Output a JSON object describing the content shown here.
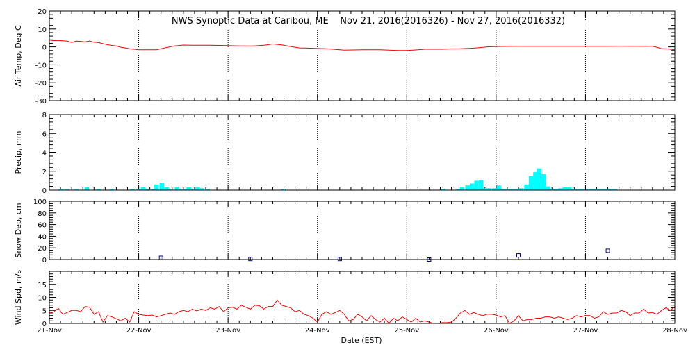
{
  "title": "NWS Synoptic Data at Caribou, ME    Nov 21, 2016(2016326) - Nov 27, 2016(2016332)",
  "x_axis_label": "Date (EST)",
  "x_tick_labels": [
    "21-Nov",
    "22-Nov",
    "23-Nov",
    "24-Nov",
    "25-Nov",
    "26-Nov",
    "27-Nov",
    "28-Nov"
  ],
  "colors": {
    "line": "#ff0000",
    "precip": "#00ffff",
    "snow_marker": "#000080"
  },
  "chart_data": [
    {
      "type": "line",
      "name": "air_temp",
      "ylabel": "Air Temp, Deg C",
      "ylim": [
        -30,
        20
      ],
      "yticks": [
        -30,
        -20,
        -10,
        0,
        10,
        20
      ],
      "x_units": "days after 21-Nov 00:00",
      "x": [
        0.0,
        0.05,
        0.1,
        0.15,
        0.2,
        0.25,
        0.3,
        0.35,
        0.4,
        0.45,
        0.5,
        0.55,
        0.6,
        0.65,
        0.7,
        0.75,
        0.8,
        0.85,
        0.9,
        0.95,
        1.0,
        1.1,
        1.2,
        1.3,
        1.4,
        1.5,
        1.6,
        1.7,
        1.8,
        1.9,
        2.0,
        2.1,
        2.2,
        2.3,
        2.4,
        2.5,
        2.6,
        2.7,
        2.8,
        2.9,
        3.0,
        3.1,
        3.2,
        3.3,
        3.4,
        3.5,
        3.6,
        3.7,
        3.8,
        3.9,
        4.0,
        4.1,
        4.2,
        4.3,
        4.4,
        4.5,
        4.6,
        4.7,
        4.8,
        4.9,
        5.0,
        5.2,
        5.4,
        5.6,
        5.8,
        6.0,
        6.2,
        6.4,
        6.6,
        6.75,
        6.8,
        6.85,
        6.9,
        6.95,
        7.0
      ],
      "y": [
        3.8,
        3.5,
        3.6,
        3.4,
        3.2,
        2.5,
        3.2,
        3.1,
        2.8,
        3.3,
        2.6,
        2.4,
        1.8,
        1.2,
        0.8,
        0.5,
        -0.2,
        -0.6,
        -1.1,
        -1.3,
        -1.6,
        -1.6,
        -1.6,
        -0.5,
        0.5,
        1.0,
        0.9,
        0.9,
        0.9,
        0.8,
        0.7,
        0.6,
        0.5,
        0.6,
        0.9,
        1.6,
        1.1,
        0.2,
        -0.6,
        -0.7,
        -0.9,
        -1.0,
        -1.4,
        -1.8,
        -1.7,
        -1.6,
        -1.6,
        -1.6,
        -1.8,
        -2.0,
        -2.0,
        -1.7,
        -1.3,
        -1.3,
        -1.3,
        -1.1,
        -1.0,
        -0.8,
        -0.5,
        0.0,
        0.2,
        0.3,
        0.3,
        0.3,
        0.3,
        0.3,
        0.3,
        0.4,
        0.3,
        0.3,
        -0.2,
        -1.0,
        -1.0,
        -1.3,
        -1.6
      ]
    },
    {
      "type": "bar",
      "name": "precip",
      "ylabel": "Precip, mm",
      "ylim": [
        0,
        8
      ],
      "yticks": [
        0,
        2,
        4,
        6,
        8
      ],
      "x_units": "days after 21-Nov 00:00",
      "x": [
        0.13,
        0.2,
        0.3,
        0.42,
        0.55,
        0.7,
        0.93,
        1.0,
        1.05,
        1.1,
        1.16,
        1.2,
        1.26,
        1.31,
        1.36,
        1.43,
        1.47,
        1.52,
        1.56,
        1.61,
        1.66,
        1.71,
        1.77,
        2.62,
        4.41,
        4.58,
        4.62,
        4.68,
        4.73,
        4.78,
        4.83,
        4.87,
        4.92,
        4.98,
        5.03,
        5.08,
        5.13,
        5.18,
        5.23,
        5.28,
        5.34,
        5.39,
        5.44,
        5.48,
        5.53,
        5.58,
        5.63,
        5.67,
        5.72,
        5.77,
        5.82,
        5.87,
        5.92,
        5.97,
        6.03,
        6.08,
        6.13,
        6.18,
        6.23,
        6.28,
        6.33
      ],
      "values": [
        0.1,
        0.1,
        0.1,
        0.3,
        0.1,
        0.1,
        0.1,
        0.1,
        0.3,
        0.1,
        0.1,
        0.6,
        0.8,
        0.3,
        0.1,
        0.3,
        0.1,
        0.1,
        0.3,
        0.1,
        0.3,
        0.2,
        0.1,
        0.1,
        0.1,
        0.1,
        0.3,
        0.5,
        0.7,
        1.0,
        1.1,
        0.2,
        0.2,
        0.2,
        0.5,
        0.1,
        0.1,
        0.1,
        0.1,
        0.2,
        0.6,
        1.5,
        1.9,
        2.3,
        1.7,
        0.4,
        0.1,
        0.1,
        0.2,
        0.3,
        0.3,
        0.1,
        0.1,
        0.1,
        0.1,
        0.1,
        0.1,
        0.1,
        0.1,
        0.1,
        0.1
      ]
    },
    {
      "type": "scatter",
      "name": "snow_depth",
      "ylabel": "Snow Dep, cm",
      "ylim": [
        0,
        100
      ],
      "yticks": [
        0,
        20,
        40,
        60,
        80,
        100
      ],
      "x_units": "days after 21-Nov 00:00",
      "x": [
        1.25,
        2.25,
        3.25,
        4.25,
        5.25,
        6.25
      ],
      "y": [
        3,
        1,
        1,
        0,
        7,
        15
      ]
    },
    {
      "type": "line",
      "name": "wind_speed",
      "ylabel": "Wind Spd, m/s",
      "ylim": [
        0,
        20
      ],
      "yticks": [
        0,
        5,
        10,
        15
      ],
      "x_units": "days after 21-Nov 00:00",
      "x": [
        0.0,
        0.05,
        0.1,
        0.15,
        0.2,
        0.25,
        0.3,
        0.35,
        0.4,
        0.45,
        0.5,
        0.55,
        0.6,
        0.65,
        0.7,
        0.75,
        0.8,
        0.85,
        0.9,
        0.95,
        1.0,
        1.05,
        1.1,
        1.15,
        1.2,
        1.25,
        1.3,
        1.35,
        1.4,
        1.45,
        1.5,
        1.55,
        1.6,
        1.65,
        1.7,
        1.75,
        1.8,
        1.85,
        1.9,
        1.95,
        2.0,
        2.05,
        2.1,
        2.15,
        2.2,
        2.25,
        2.3,
        2.35,
        2.4,
        2.45,
        2.5,
        2.55,
        2.6,
        2.65,
        2.7,
        2.75,
        2.8,
        2.85,
        2.9,
        2.95,
        3.0,
        3.05,
        3.1,
        3.15,
        3.2,
        3.25,
        3.3,
        3.35,
        3.4,
        3.45,
        3.5,
        3.55,
        3.6,
        3.65,
        3.7,
        3.75,
        3.8,
        3.85,
        3.9,
        3.95,
        4.0,
        4.05,
        4.1,
        4.15,
        4.2,
        4.25,
        4.3,
        4.35,
        4.4,
        4.45,
        4.5,
        4.55,
        4.6,
        4.65,
        4.7,
        4.75,
        4.8,
        4.85,
        4.9,
        4.95,
        5.0,
        5.05,
        5.1,
        5.15,
        5.2,
        5.25,
        5.3,
        5.35,
        5.4,
        5.45,
        5.5,
        5.55,
        5.6,
        5.65,
        5.7,
        5.75,
        5.8,
        5.85,
        5.9,
        5.95,
        6.0,
        6.05,
        6.1,
        6.15,
        6.2,
        6.25,
        6.3,
        6.35,
        6.4,
        6.45,
        6.5,
        6.55,
        6.6,
        6.65,
        6.7,
        6.75,
        6.8,
        6.85,
        6.9,
        6.95,
        7.0
      ],
      "y": [
        4.0,
        4.5,
        5.8,
        3.5,
        4.2,
        5.0,
        5.0,
        4.5,
        6.5,
        6.2,
        3.5,
        4.5,
        0.5,
        3.0,
        2.5,
        1.8,
        1.0,
        2.0,
        0.5,
        4.5,
        3.5,
        3.2,
        3.0,
        3.2,
        2.5,
        3.0,
        3.5,
        4.0,
        3.5,
        4.5,
        5.0,
        4.5,
        5.5,
        4.8,
        5.5,
        5.0,
        6.0,
        5.5,
        6.5,
        4.5,
        6.0,
        6.2,
        5.5,
        7.0,
        6.2,
        5.5,
        7.0,
        6.8,
        5.5,
        6.5,
        6.5,
        9.0,
        7.0,
        6.5,
        6.0,
        4.5,
        5.0,
        3.5,
        3.0,
        2.0,
        0.5,
        3.5,
        4.5,
        3.5,
        4.2,
        5.0,
        3.5,
        1.0,
        1.5,
        3.5,
        2.5,
        1.0,
        3.0,
        1.5,
        0.5,
        2.0,
        0.0,
        2.0,
        1.0,
        2.5,
        1.5,
        0.5,
        2.0,
        0.5,
        1.0,
        0.5,
        0.0,
        0.0,
        0.3,
        0.3,
        0.5,
        2.0,
        4.0,
        5.0,
        3.5,
        4.2,
        3.5,
        3.0,
        3.5,
        3.5,
        3.2,
        2.5,
        3.0,
        0.0,
        1.0,
        3.0,
        1.0,
        1.5,
        1.5,
        2.0,
        2.0,
        2.5,
        2.5,
        2.0,
        2.5,
        2.0,
        1.5,
        2.0,
        3.0,
        2.5,
        3.0,
        3.0,
        2.0,
        2.5,
        4.5,
        3.5,
        4.0,
        4.0,
        5.0,
        4.5,
        3.0,
        4.0,
        4.0,
        5.5,
        4.0,
        4.2,
        3.5,
        5.0,
        6.0,
        5.0,
        6.5
      ]
    }
  ]
}
